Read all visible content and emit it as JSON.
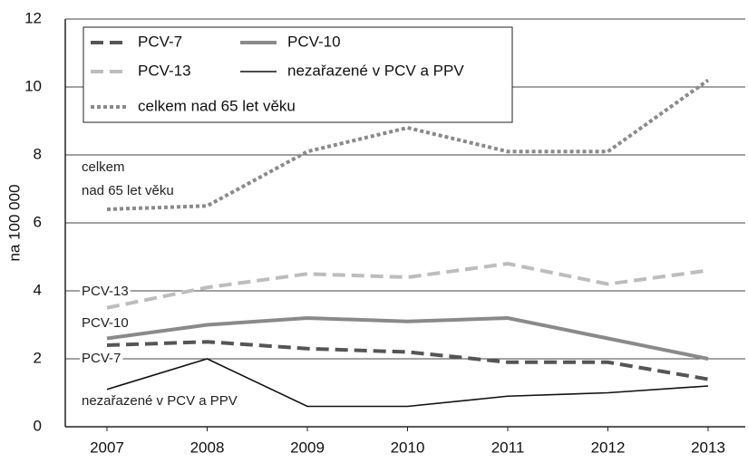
{
  "chart_data": {
    "type": "line",
    "y_label": "na 100 000",
    "x": [
      "2007",
      "2008",
      "2009",
      "2010",
      "2011",
      "2012",
      "2013"
    ],
    "series": [
      {
        "name": "PCV-7",
        "color": "#555555",
        "line_style": "dashed",
        "linewidth": 4,
        "values": [
          2.4,
          2.5,
          2.3,
          2.2,
          1.9,
          1.9,
          1.4
        ]
      },
      {
        "name": "PCV-10",
        "color": "#8a8a8a",
        "line_style": "solid",
        "linewidth": 4,
        "values": [
          2.6,
          3.0,
          3.2,
          3.1,
          3.2,
          2.6,
          2.0
        ]
      },
      {
        "name": "PCV-13",
        "color": "#bdbdbd",
        "line_style": "dashed",
        "linewidth": 4,
        "values": [
          3.5,
          4.1,
          4.5,
          4.4,
          4.8,
          4.2,
          4.6
        ]
      },
      {
        "name": "nezařazené v PCV a PPV",
        "color": "#111111",
        "line_style": "solid",
        "linewidth": 1.6,
        "values": [
          1.1,
          2.0,
          0.6,
          0.6,
          0.9,
          1.0,
          1.2
        ]
      },
      {
        "name": "celkem nad 65 let věku",
        "color": "#8a8a8a",
        "line_style": "dotted",
        "linewidth": 4,
        "values": [
          6.4,
          6.5,
          8.1,
          8.8,
          8.1,
          8.1,
          10.2
        ]
      }
    ],
    "annotations": [
      "celkem",
      "nad 65 let věku",
      "PCV-13",
      "PCV-10",
      "PCV-7",
      "nezařazené v PCV a PPV"
    ],
    "ylim": [
      0,
      12
    ],
    "yticks": [
      0,
      2,
      4,
      6,
      8,
      10,
      12
    ],
    "grid": true,
    "legend": "upper left"
  }
}
